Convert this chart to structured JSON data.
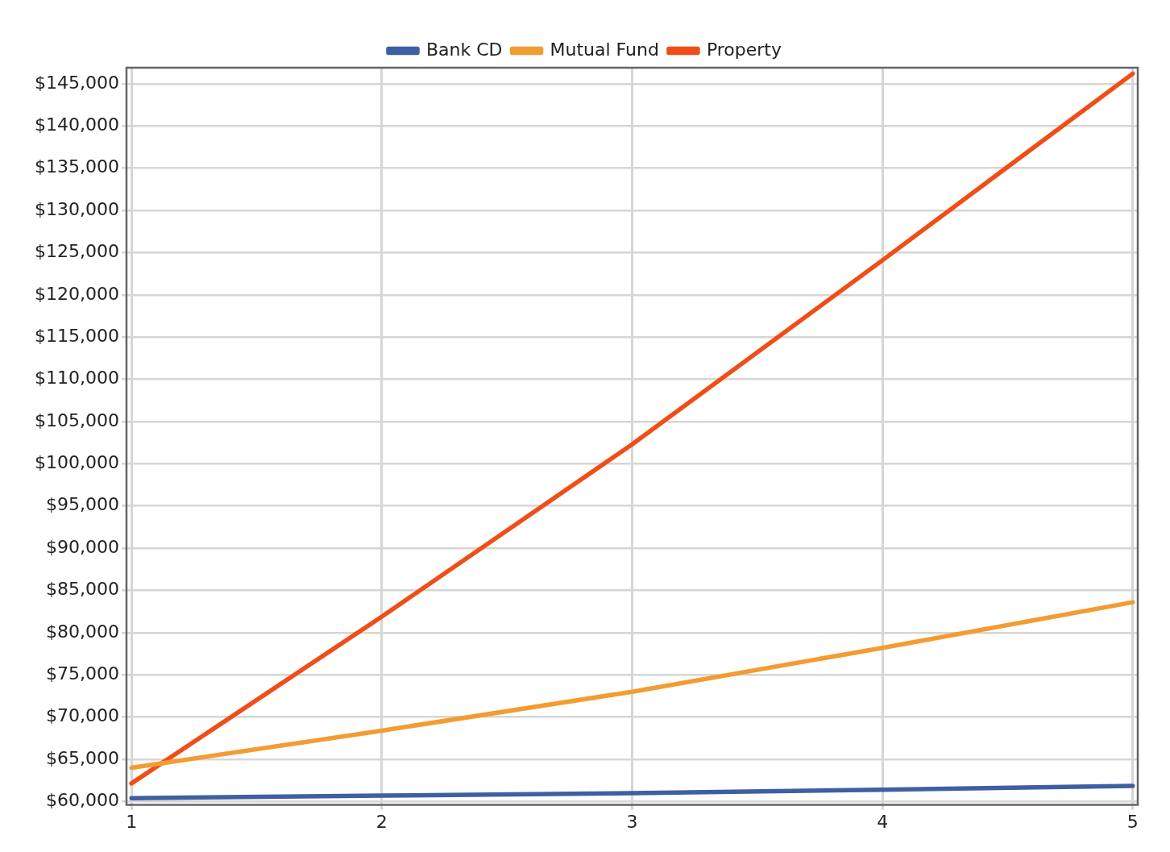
{
  "chart_data": {
    "type": "line",
    "x": [
      1,
      2,
      3,
      4,
      5
    ],
    "series": [
      {
        "name": "Bank CD",
        "color": "#3f5fa3",
        "values": [
          60400,
          60700,
          61000,
          61400,
          61850
        ]
      },
      {
        "name": "Mutual Fund",
        "color": "#f39c32",
        "values": [
          64000,
          68400,
          73000,
          78200,
          83600
        ]
      },
      {
        "name": "Property",
        "color": "#f04e17",
        "values": [
          62150,
          81900,
          102300,
          124100,
          146200
        ]
      }
    ],
    "xlim": [
      0.98,
      5.02
    ],
    "xticks": [
      1,
      2,
      3,
      4,
      5
    ],
    "ylim": [
      59600,
      146900
    ],
    "yticks": [
      {
        "value": 60000,
        "label": "$60,000"
      },
      {
        "value": 65000,
        "label": "$65,000"
      },
      {
        "value": 70000,
        "label": "$70,000"
      },
      {
        "value": 75000,
        "label": "$75,000"
      },
      {
        "value": 80000,
        "label": "$80,000"
      },
      {
        "value": 85000,
        "label": "$85,000"
      },
      {
        "value": 90000,
        "label": "$90,000"
      },
      {
        "value": 95000,
        "label": "$95,000"
      },
      {
        "value": 100000,
        "label": "$100,000"
      },
      {
        "value": 105000,
        "label": "$105,000"
      },
      {
        "value": 110000,
        "label": "$110,000"
      },
      {
        "value": 115000,
        "label": "$115,000"
      },
      {
        "value": 120000,
        "label": "$120,000"
      },
      {
        "value": 125000,
        "label": "$125,000"
      },
      {
        "value": 130000,
        "label": "$130,000"
      },
      {
        "value": 135000,
        "label": "$135,000"
      },
      {
        "value": 140000,
        "label": "$140,000"
      },
      {
        "value": 145000,
        "label": "$145,000"
      }
    ],
    "grid": true,
    "legend": "top",
    "marker": "none",
    "line_style": "solid"
  }
}
